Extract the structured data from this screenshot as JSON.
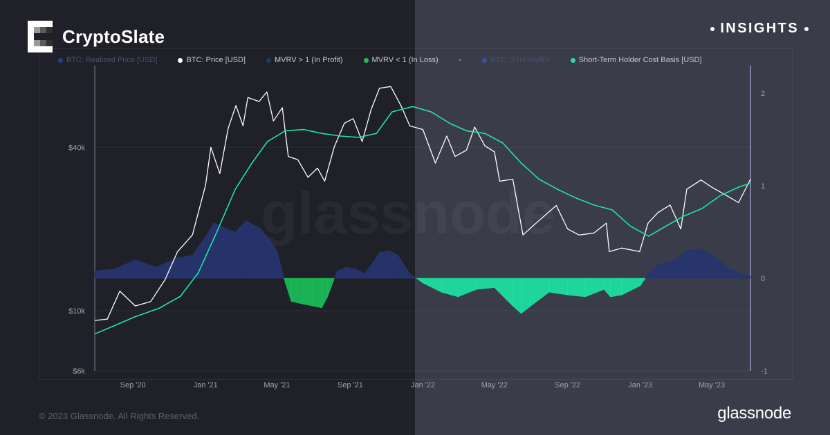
{
  "brand": {
    "name": "CryptoSlate"
  },
  "badge": {
    "label": "INSIGHTS"
  },
  "legend": [
    {
      "label": "BTC: Realized Price [USD]",
      "color": "#2b62d9",
      "faded": true
    },
    {
      "label": "BTC: Price [USD]",
      "color": "#ffffff",
      "faded": false
    },
    {
      "label": "MVRV > 1 (In Profit)",
      "color": "#26356e",
      "faded": false
    },
    {
      "label": "MVRV < 1 (In Loss)",
      "color": "#19c15a",
      "faded": false
    },
    {
      "label": "-",
      "color": "",
      "faded": false
    },
    {
      "label": "BTC: STH-MVRV",
      "color": "#3d66df",
      "faded": true
    },
    {
      "label": "Short-Term Holder Cost Basis [USD]",
      "color": "#1de6a4",
      "faded": false
    }
  ],
  "watermark": "glassnode",
  "footer": {
    "copyright": "© 2023 Glassnode. All Rights Reserved.",
    "logo": "glassnode"
  },
  "chart_data": {
    "type": "line",
    "x_ticks": [
      "Sep '20",
      "Jan '21",
      "May '21",
      "Sep '21",
      "Jan '22",
      "May '22",
      "Sep '22",
      "Jan '23",
      "May '23"
    ],
    "y_left": {
      "scale": "log",
      "ticks": [
        "$6k",
        "$10k",
        "$40k"
      ],
      "tick_values": [
        6000,
        10000,
        40000
      ],
      "range": [
        6000,
        80000
      ]
    },
    "y_right": {
      "ticks": [
        "2",
        "1",
        "0",
        "-1"
      ],
      "tick_values": [
        2,
        1,
        0,
        -1
      ],
      "range": [
        -1,
        2.3
      ]
    },
    "x_range": [
      "2020-06-29",
      "2023-07-05"
    ],
    "series": [
      {
        "name": "BTC: Price [USD]",
        "color": "#ffffff",
        "x": [
          "2020-06-29",
          "2020-07-20",
          "2020-08-10",
          "2020-09-05",
          "2020-10-01",
          "2020-10-25",
          "2020-11-15",
          "2020-12-10",
          "2021-01-01",
          "2021-01-10",
          "2021-01-25",
          "2021-02-08",
          "2021-02-21",
          "2021-03-05",
          "2021-03-13",
          "2021-04-01",
          "2021-04-14",
          "2021-04-25",
          "2021-05-10",
          "2021-05-20",
          "2021-06-05",
          "2021-06-22",
          "2021-07-08",
          "2021-07-20",
          "2021-08-05",
          "2021-08-22",
          "2021-09-06",
          "2021-09-21",
          "2021-10-06",
          "2021-10-20",
          "2021-11-08",
          "2021-11-25",
          "2021-12-10",
          "2022-01-01",
          "2022-01-22",
          "2022-02-10",
          "2022-02-24",
          "2022-03-15",
          "2022-03-29",
          "2022-04-15",
          "2022-05-01",
          "2022-05-10",
          "2022-06-01",
          "2022-06-18",
          "2022-07-10",
          "2022-08-13",
          "2022-09-01",
          "2022-09-20",
          "2022-10-15",
          "2022-11-05",
          "2022-11-10",
          "2022-12-01",
          "2022-12-31",
          "2023-01-14",
          "2023-01-31",
          "2023-02-20",
          "2023-03-10",
          "2023-03-20",
          "2023-04-13",
          "2023-05-01",
          "2023-05-20",
          "2023-06-15",
          "2023-07-05"
        ],
        "values": [
          9200,
          9300,
          11800,
          10400,
          10800,
          13000,
          16500,
          19000,
          29000,
          40000,
          32000,
          47000,
          57000,
          48000,
          61000,
          59000,
          64000,
          50000,
          56000,
          37000,
          36000,
          31000,
          33500,
          30000,
          40000,
          49000,
          51000,
          42000,
          55000,
          66000,
          67000,
          57000,
          48000,
          46500,
          35000,
          44000,
          37000,
          39000,
          47500,
          40500,
          38500,
          30000,
          30500,
          19000,
          21000,
          24400,
          20000,
          19000,
          19300,
          21000,
          16500,
          17000,
          16500,
          21000,
          23000,
          24500,
          20000,
          28000,
          30300,
          28500,
          27000,
          25000,
          30500
        ]
      },
      {
        "name": "Short-Term Holder Cost Basis [USD]",
        "color": "#1de6a4",
        "x": [
          "2020-06-29",
          "2020-08-01",
          "2020-09-05",
          "2020-10-15",
          "2020-11-20",
          "2020-12-20",
          "2021-01-20",
          "2021-02-20",
          "2021-03-20",
          "2021-04-15",
          "2021-05-15",
          "2021-06-15",
          "2021-07-15",
          "2021-08-15",
          "2021-09-15",
          "2021-10-15",
          "2021-11-10",
          "2021-12-15",
          "2022-01-15",
          "2022-02-15",
          "2022-03-15",
          "2022-04-15",
          "2022-05-15",
          "2022-06-15",
          "2022-07-15",
          "2022-08-15",
          "2022-09-15",
          "2022-10-15",
          "2022-11-15",
          "2022-12-15",
          "2023-01-15",
          "2023-02-15",
          "2023-03-15",
          "2023-04-15",
          "2023-05-15",
          "2023-06-15",
          "2023-07-05"
        ],
        "values": [
          8200,
          8800,
          9500,
          10200,
          11300,
          13800,
          19500,
          28000,
          35000,
          42000,
          46000,
          46500,
          45000,
          44000,
          43500,
          45000,
          54000,
          56500,
          54000,
          49000,
          46000,
          45000,
          41500,
          35000,
          30500,
          28000,
          26000,
          24500,
          23500,
          20500,
          18800,
          20600,
          22300,
          23800,
          26500,
          28500,
          29500
        ]
      },
      {
        "name": "BTC: STH-MVRV",
        "kind": "area",
        "positive_color": "#26356e",
        "negative_color_2021": "#19c15a",
        "negative_color_2022": "#1de6a4",
        "x": [
          "2020-06-29",
          "2020-08-01",
          "2020-09-05",
          "2020-10-10",
          "2020-11-15",
          "2020-12-10",
          "2021-01-01",
          "2021-01-15",
          "2021-02-01",
          "2021-02-20",
          "2021-03-10",
          "2021-04-01",
          "2021-04-15",
          "2021-05-01",
          "2021-05-15",
          "2021-05-25",
          "2021-06-15",
          "2021-07-01",
          "2021-07-15",
          "2021-07-25",
          "2021-08-10",
          "2021-08-25",
          "2021-09-10",
          "2021-09-25",
          "2021-10-10",
          "2021-10-20",
          "2021-11-05",
          "2021-11-20",
          "2021-12-10",
          "2022-01-01",
          "2022-02-01",
          "2022-03-01",
          "2022-04-01",
          "2022-05-01",
          "2022-06-01",
          "2022-06-15",
          "2022-07-01",
          "2022-08-01",
          "2022-09-01",
          "2022-10-01",
          "2022-11-01",
          "2022-11-12",
          "2022-12-01",
          "2023-01-01",
          "2023-01-15",
          "2023-02-01",
          "2023-03-01",
          "2023-03-20",
          "2023-04-15",
          "2023-05-01",
          "2023-06-01",
          "2023-06-20",
          "2023-07-05"
        ],
        "values": [
          0.08,
          0.1,
          0.2,
          0.12,
          0.22,
          0.25,
          0.45,
          0.6,
          0.55,
          0.5,
          0.62,
          0.55,
          0.45,
          0.3,
          -0.05,
          -0.25,
          -0.28,
          -0.3,
          -0.32,
          -0.2,
          0.08,
          0.12,
          0.1,
          0.05,
          0.18,
          0.28,
          0.3,
          0.25,
          0.05,
          -0.05,
          -0.15,
          -0.2,
          -0.12,
          -0.1,
          -0.3,
          -0.38,
          -0.3,
          -0.15,
          -0.18,
          -0.2,
          -0.12,
          -0.2,
          -0.18,
          -0.08,
          0.05,
          0.15,
          0.2,
          0.3,
          0.32,
          0.25,
          0.1,
          0.05,
          0.02
        ]
      }
    ]
  }
}
